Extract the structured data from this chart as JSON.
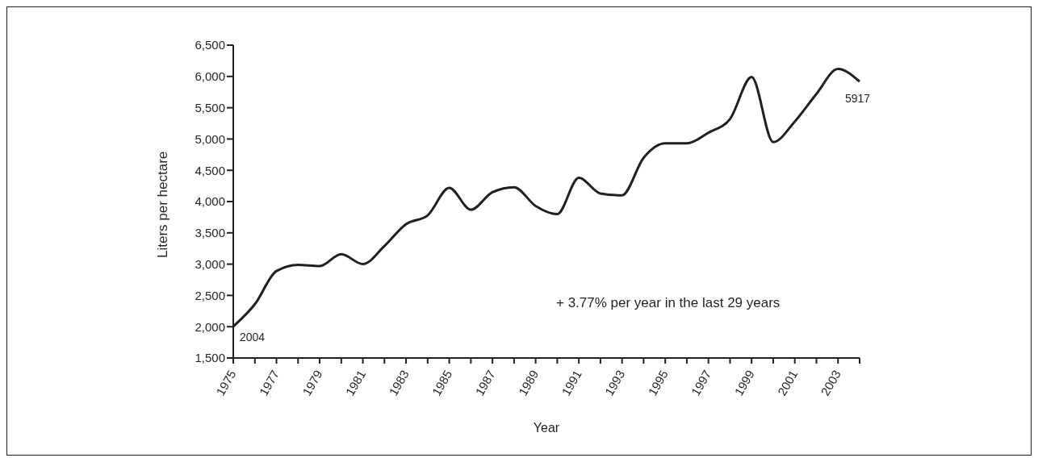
{
  "chart_data": {
    "type": "line",
    "xlabel": "Year",
    "ylabel": "Liters per hectare",
    "categories": [
      "1975",
      null,
      "1977",
      null,
      "1979",
      null,
      "1981",
      null,
      "1983",
      null,
      "1985",
      null,
      "1987",
      null,
      "1989",
      null,
      "1991",
      null,
      "1993",
      null,
      "1995",
      null,
      "1997",
      null,
      "1999",
      null,
      "2001",
      null,
      "2003",
      null
    ],
    "series": [
      {
        "color": "#231f20",
        "values": [
          2004,
          2360,
          2890,
          2990,
          2970,
          3160,
          3000,
          3290,
          3640,
          3780,
          4220,
          3870,
          4150,
          4230,
          3930,
          3800,
          4380,
          4130,
          4100,
          4700,
          4930,
          4930,
          5100,
          5320,
          5990,
          4950,
          5280,
          5720,
          6120,
          5917
        ],
        "value_labels": [
          "2004",
          null,
          null,
          null,
          null,
          null,
          null,
          null,
          null,
          null,
          null,
          null,
          null,
          null,
          null,
          null,
          null,
          null,
          null,
          null,
          null,
          null,
          null,
          null,
          null,
          null,
          null,
          null,
          null,
          "5917"
        ]
      }
    ],
    "ylim": [
      1500,
      6500
    ],
    "yticks": [
      {
        "value": 1500,
        "label": "1,500"
      },
      {
        "value": 2000,
        "label": "2,000"
      },
      {
        "value": 2500,
        "label": "2,500"
      },
      {
        "value": 3000,
        "label": "3,000"
      },
      {
        "value": 3500,
        "label": "3,500"
      },
      {
        "value": 4000,
        "label": "4,000"
      },
      {
        "value": 4500,
        "label": "4,500"
      },
      {
        "value": 5000,
        "label": "5,000"
      },
      {
        "value": 5500,
        "label": "5,500"
      },
      {
        "value": 6000,
        "label": "6,000"
      },
      {
        "value": 6500,
        "label": "6,500"
      }
    ],
    "annotations": [
      "+ 3.77% per year in the last 29 years"
    ],
    "grid": false,
    "legend": false,
    "marker": "none",
    "line_style": "solid"
  }
}
